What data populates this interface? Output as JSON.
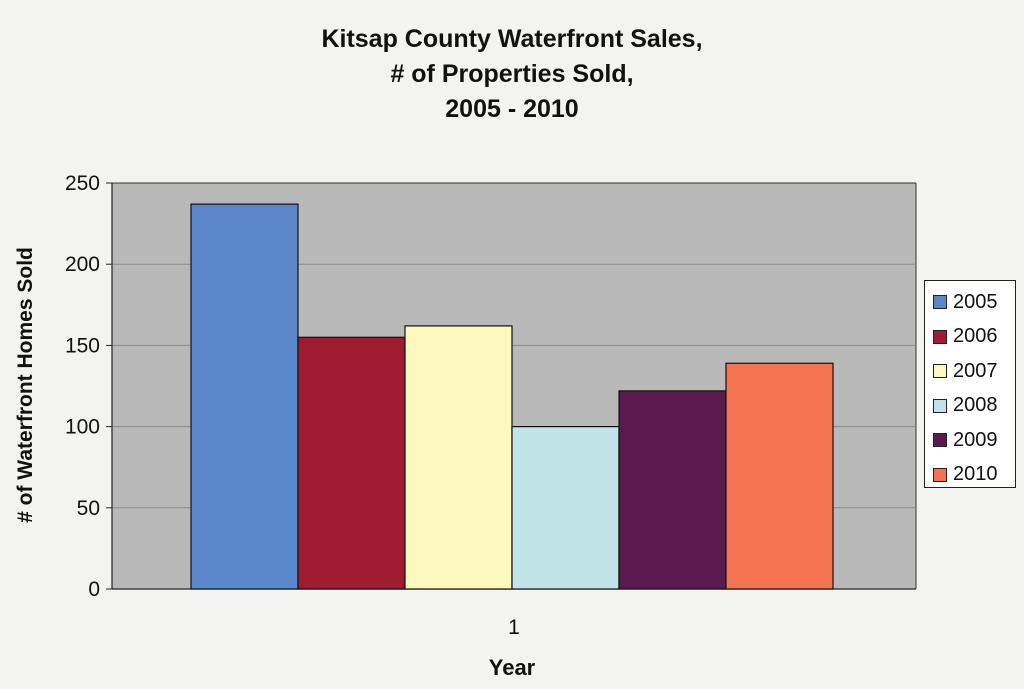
{
  "chart_data": {
    "type": "bar",
    "title_lines": [
      "Kitsap County Waterfront Sales,",
      "# of Properties Sold,",
      "2005 - 2010"
    ],
    "xlabel": "Year",
    "ylabel": "# of Waterfront Homes Sold",
    "categories": [
      "1"
    ],
    "ylim": [
      0,
      250
    ],
    "yticks": [
      0,
      50,
      100,
      150,
      200,
      250
    ],
    "grid": true,
    "legend_position": "right",
    "series": [
      {
        "name": "2005",
        "values": [
          237
        ],
        "color": "#5b86c9"
      },
      {
        "name": "2006",
        "values": [
          155
        ],
        "color": "#9e1b32"
      },
      {
        "name": "2007",
        "values": [
          162
        ],
        "color": "#fbf9bd"
      },
      {
        "name": "2008",
        "values": [
          100
        ],
        "color": "#bfe3e7"
      },
      {
        "name": "2009",
        "values": [
          122
        ],
        "color": "#5a1a4f"
      },
      {
        "name": "2010",
        "values": [
          139
        ],
        "color": "#f47350"
      }
    ]
  }
}
